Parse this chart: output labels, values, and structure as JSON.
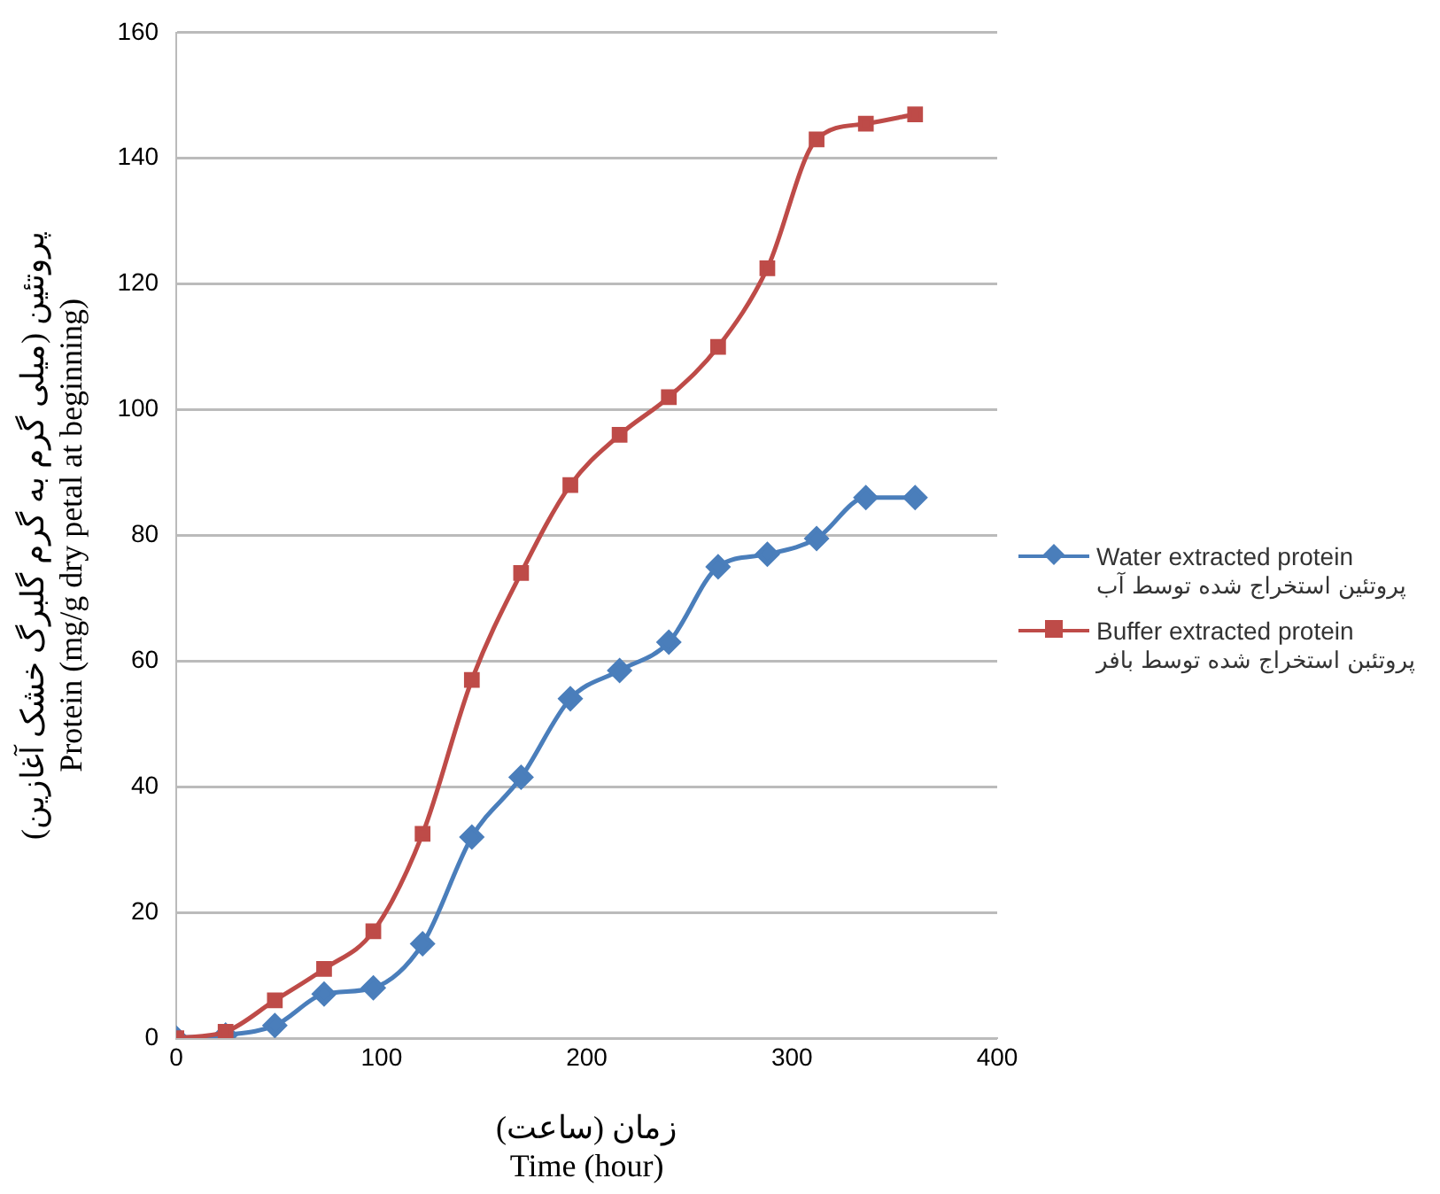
{
  "chart_data": {
    "type": "line",
    "xlabel": "زمان (ساعت)\nTime (hour)",
    "ylabel": "پروتئین (میلی گرم به گرم گلبرگ خشک آغازین)\nProtein (mg/g dry petal at beginning)",
    "x": [
      0,
      24,
      48,
      72,
      96,
      120,
      144,
      168,
      192,
      216,
      240,
      264,
      288,
      312,
      336,
      360
    ],
    "series": [
      {
        "name": "Water extracted protein\nپروتئین استخراج شده توسط آب",
        "color": "#4a7ebb",
        "marker": "diamond",
        "values": [
          0,
          0.5,
          2,
          7,
          8,
          15,
          32,
          41.5,
          54,
          58.5,
          63,
          75,
          77,
          79.5,
          86,
          86
        ]
      },
      {
        "name": "Buffer extracted protein\nپروتئبن استخراج شده توسط بافر",
        "color": "#be4b48",
        "marker": "square",
        "values": [
          0,
          1,
          6,
          11,
          17,
          32.5,
          57,
          74,
          88,
          96,
          102,
          110,
          122.5,
          143,
          145.5,
          147
        ]
      }
    ],
    "xlim": [
      0,
      400
    ],
    "xticks": [
      0,
      100,
      200,
      300,
      400
    ],
    "ylim": [
      0,
      160
    ],
    "yticks": [
      0,
      20,
      40,
      60,
      80,
      100,
      120,
      140,
      160
    ],
    "grid": "y",
    "legend": "right",
    "line_style": "solid"
  }
}
